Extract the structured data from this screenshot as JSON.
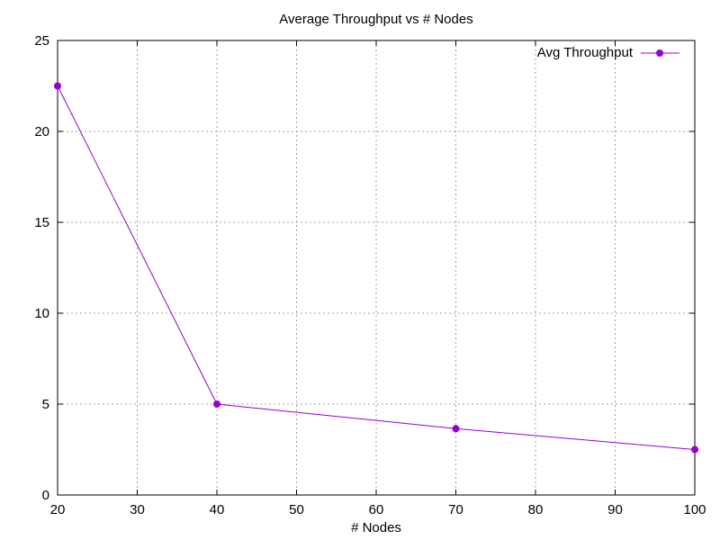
{
  "chart_data": {
    "type": "line",
    "title": "Average Throughput vs # Nodes",
    "xlabel": "# Nodes",
    "ylabel": "",
    "xlim": [
      20,
      100
    ],
    "ylim": [
      0,
      25
    ],
    "xticks": [
      20,
      30,
      40,
      50,
      60,
      70,
      80,
      90,
      100
    ],
    "yticks": [
      0,
      5,
      10,
      15,
      20,
      25
    ],
    "grid": true,
    "legend": "top-right",
    "series": [
      {
        "name": "Avg Throughput",
        "color": "#9400d3",
        "x": [
          20,
          40,
          70,
          100
        ],
        "y": [
          22.5,
          5.0,
          3.65,
          2.5
        ]
      }
    ]
  }
}
